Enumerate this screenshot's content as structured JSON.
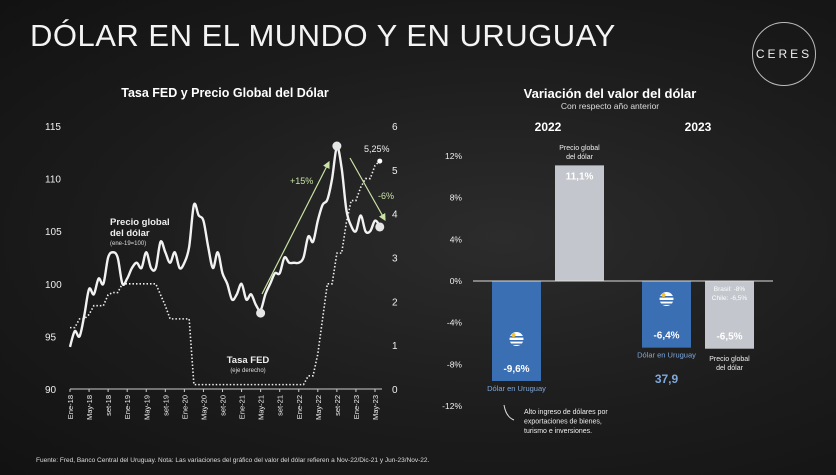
{
  "title": "DÓLAR EN EL MUNDO Y EN URUGUAY",
  "logo_text": "CERES",
  "footer": "Fuente: Fred, Banco Central del Uruguay. Nota: Las variaciones del gráfico del valor del dólar refieren a Nov-22/Dic-21 y Jun-23/Nov-22.",
  "chart_data": [
    {
      "type": "line",
      "title": "Tasa FED y Precio Global del Dólar",
      "x_tick_labels": [
        "Ene-18",
        "May-18",
        "set-18",
        "Ene-19",
        "May-19",
        "set-19",
        "Ene-20",
        "May-20",
        "set-20",
        "Ene-21",
        "May-21",
        "set-21",
        "Ene-22",
        "May-22",
        "set-22",
        "Ene-23",
        "May-23"
      ],
      "x_start": "Ene-18",
      "y_left": {
        "ticks": [
          "90",
          "95",
          "100",
          "105",
          "110",
          "115"
        ],
        "range": [
          90,
          115
        ]
      },
      "y_right": {
        "ticks": [
          "0",
          "1",
          "2",
          "3",
          "4",
          "5",
          "6"
        ],
        "range": [
          0,
          6
        ]
      },
      "series": [
        {
          "name": "Precio global del dólar",
          "sublabel": "(ene-19=100)",
          "axis": "left",
          "style": "solid",
          "values": [
            94,
            95.5,
            95,
            97,
            99.5,
            99,
            100.5,
            100,
            102.5,
            103,
            102.5,
            100,
            100.5,
            101.5,
            102,
            101.5,
            103,
            101.5,
            101.5,
            104,
            103,
            102,
            103,
            101.5,
            102,
            103.5,
            107.5,
            106.5,
            106,
            103.5,
            101.5,
            103,
            101,
            100,
            98.5,
            99,
            100,
            98.5,
            99,
            98,
            97.5,
            99,
            100,
            101,
            101,
            102.5,
            102,
            102,
            102,
            102.5,
            104.5,
            104,
            106,
            107.5,
            108,
            110,
            113,
            111,
            107,
            105.5,
            105,
            106.5,
            105,
            105,
            106,
            105.5
          ]
        },
        {
          "name": "Tasa FED",
          "sublabel": "(eje derecho)",
          "axis": "right",
          "style": "dotted",
          "values": [
            1.4,
            1.4,
            1.6,
            1.6,
            1.7,
            1.9,
            1.9,
            1.9,
            2.15,
            2.2,
            2.2,
            2.4,
            2.4,
            2.4,
            2.4,
            2.4,
            2.4,
            2.4,
            2.4,
            2.15,
            1.9,
            1.6,
            1.6,
            1.6,
            1.6,
            1.6,
            0.1,
            0.1,
            0.1,
            0.1,
            0.1,
            0.1,
            0.1,
            0.1,
            0.1,
            0.1,
            0.1,
            0.1,
            0.1,
            0.1,
            0.1,
            0.1,
            0.1,
            0.1,
            0.1,
            0.1,
            0.1,
            0.1,
            0.1,
            0.1,
            0.3,
            0.3,
            0.8,
            1.6,
            2.4,
            2.4,
            3.1,
            3.1,
            3.8,
            4.3,
            4.3,
            4.6,
            4.8,
            4.8,
            5.1,
            5.2
          ]
        }
      ],
      "annotations": {
        "rise": "+15%",
        "fall": "-6%",
        "fed_last": "5,25%"
      }
    },
    {
      "type": "bar",
      "title": "Variación del valor del dólar",
      "subtitle": "Con respecto año anterior",
      "groups": [
        "2022",
        "2023"
      ],
      "y_ticks": [
        "12%",
        "8%",
        "4%",
        "0%",
        "-4%",
        "-8%",
        "-12%"
      ],
      "ylim": [
        -12,
        12
      ],
      "bars": [
        {
          "group": "2022",
          "name": "Dólar en Uruguay",
          "value": -9.6,
          "label": "-9,6%",
          "color": "#3b6fb3"
        },
        {
          "group": "2022",
          "name": "Precio global del dólar",
          "value": 11.1,
          "label": "11,1%",
          "color": "#c3c6cc"
        },
        {
          "group": "2023",
          "name": "Dólar en Uruguay",
          "value": -6.4,
          "label": "-6,4%",
          "color": "#3b6fb3",
          "extra": "37,9"
        },
        {
          "group": "2023",
          "name": "Precio global del dólar",
          "value": -6.5,
          "label": "-6,5%",
          "color": "#c3c6cc",
          "note1": "Brasil: -8%",
          "note2": "Chile: -6,5%"
        }
      ],
      "global_label_l1": "Precio global",
      "global_label_l2": "del dólar",
      "callout": [
        "Alto ingreso de dólares por",
        "exportaciones de bienes,",
        "turismo e inversiones."
      ]
    }
  ]
}
